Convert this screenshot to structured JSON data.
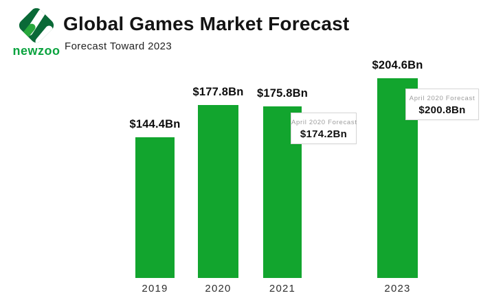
{
  "header": {
    "logo_text": "newzoo",
    "title": "Global Games Market Forecast",
    "subtitle": "Forecast Toward 2023"
  },
  "colors": {
    "bar_green": "#12a52e",
    "logo_diamond_dark_green": "#0a6937",
    "logo_capsule_light_green": "#28a73c",
    "logo_capsule_white": "#ffffff",
    "logo_wordmark_green": "#0ba33f",
    "annotation_caption_gray": "#9c9c9c"
  },
  "chart_data": {
    "type": "bar",
    "title": "Global Games Market Forecast",
    "subtitle": "Forecast Toward 2023",
    "xlabel": "",
    "ylabel": "",
    "categories": [
      "2019",
      "2020",
      "2021",
      "2023"
    ],
    "values": [
      144.4,
      177.8,
      175.8,
      204.6
    ],
    "value_labels": [
      "$144.4Bn",
      "$177.8Bn",
      "$175.8Bn",
      "$204.6Bn"
    ],
    "ylim": [
      0,
      210
    ],
    "grid": false,
    "legend": false,
    "annotations": [
      {
        "category": "2021",
        "caption": "April 2020 Forecast",
        "value_label": "$174.2Bn",
        "value": 174.2
      },
      {
        "category": "2023",
        "caption": "April 2020 Forecast",
        "value_label": "$200.8Bn",
        "value": 200.8
      }
    ]
  }
}
